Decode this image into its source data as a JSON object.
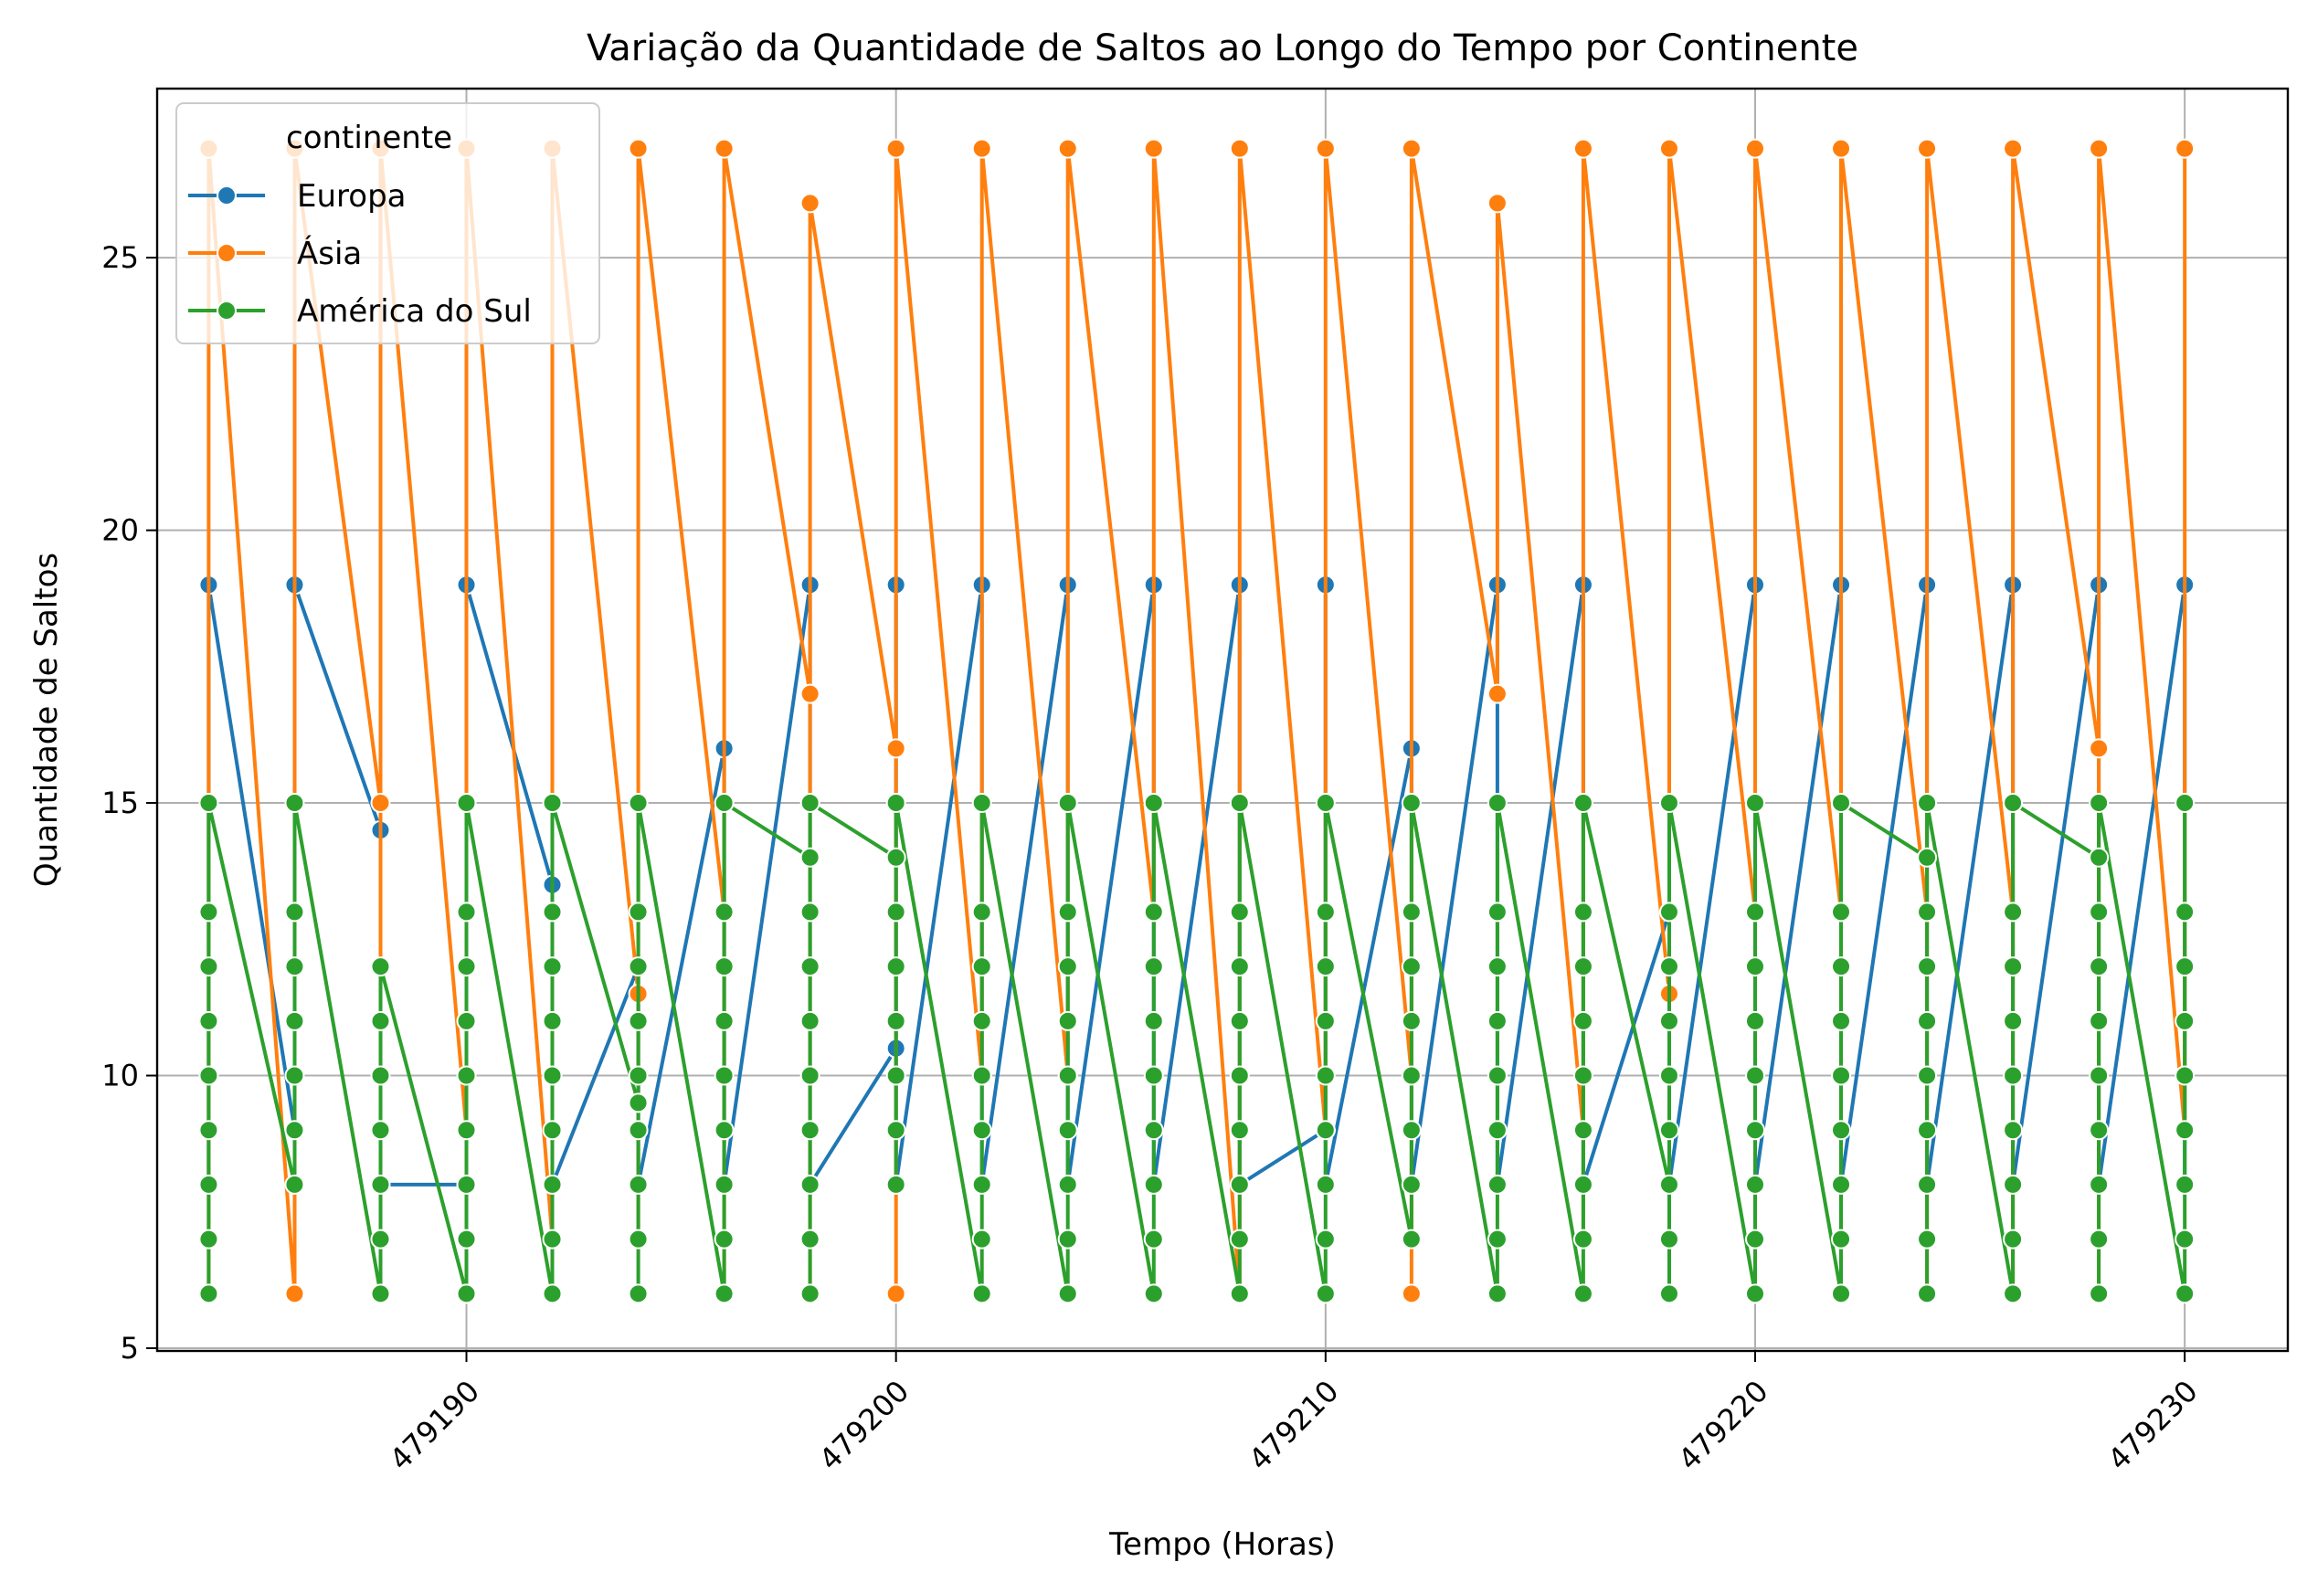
{
  "chart_data": {
    "type": "line",
    "title": "Variação da Quantidade de Saltos ao Longo do Tempo por Continente",
    "xlabel": "Tempo (Horas)",
    "ylabel": "Quantidade de Saltos",
    "xlim": [
      479182.8,
      479232.4
    ],
    "ylim": [
      4.95,
      28.1
    ],
    "x_ticks": [
      479190,
      479200,
      479210,
      479220,
      479230
    ],
    "y_ticks": [
      5,
      10,
      15,
      20,
      25
    ],
    "grid": true,
    "legend": {
      "title": "continente",
      "placement": "top-left"
    },
    "x": [
      479184,
      479186,
      479188,
      479190,
      479192,
      479194,
      479196,
      479198,
      479200,
      479202,
      479204,
      479206,
      479208,
      479210,
      479212,
      479214,
      479216,
      479218,
      479220,
      479222,
      479224,
      479226,
      479228,
      479230
    ],
    "series": [
      {
        "name": "Europa",
        "color": "#1f77b4",
        "points_per_x": [
          [
            8,
            19
          ],
          [
            9,
            19
          ],
          [
            14.5,
            8
          ],
          [
            8,
            19
          ],
          [
            13.5,
            8
          ],
          [
            12,
            8
          ],
          [
            16,
            8
          ],
          [
            19,
            8
          ],
          [
            10.5,
            19,
            11,
            8
          ],
          [
            19,
            8
          ],
          [
            19,
            8
          ],
          [
            19,
            8
          ],
          [
            19,
            8
          ],
          [
            9,
            19,
            11,
            8
          ],
          [
            16,
            8
          ],
          [
            19,
            8
          ],
          [
            19,
            8
          ],
          [
            13,
            8
          ],
          [
            19,
            8
          ],
          [
            19,
            8
          ],
          [
            19,
            8
          ],
          [
            19,
            8
          ],
          [
            19,
            8
          ],
          [
            19,
            8
          ]
        ]
      },
      {
        "name": "Ásia",
        "color": "#ff7f0e",
        "points_per_x": [
          [
            6,
            27
          ],
          [
            6,
            27
          ],
          [
            15,
            6,
            27
          ],
          [
            9,
            6,
            27
          ],
          [
            7,
            27
          ],
          [
            11.5,
            7,
            27
          ],
          [
            13,
            6,
            27
          ],
          [
            17,
            6,
            26
          ],
          [
            16,
            6,
            27
          ],
          [
            10,
            27
          ],
          [
            10,
            27
          ],
          [
            13,
            27
          ],
          [
            6,
            27
          ],
          [
            9,
            27
          ],
          [
            10,
            6,
            27
          ],
          [
            17,
            26
          ],
          [
            9,
            7,
            27
          ],
          [
            11.5,
            6,
            27
          ],
          [
            13,
            6,
            27
          ],
          [
            13,
            6,
            27
          ],
          [
            13,
            6,
            27
          ],
          [
            13,
            6,
            27
          ],
          [
            16,
            6,
            27
          ],
          [
            9,
            27
          ]
        ]
      },
      {
        "name": "América do Sul",
        "color": "#2ca02c",
        "points_per_x": [
          [
            6,
            15
          ],
          [
            8,
            15
          ],
          [
            6,
            12
          ],
          [
            6,
            15
          ],
          [
            6,
            15
          ],
          [
            9.5,
            6,
            15
          ],
          [
            6,
            15
          ],
          [
            14,
            6,
            15
          ],
          [
            14,
            8,
            15
          ],
          [
            6,
            15
          ],
          [
            6,
            15
          ],
          [
            6,
            15
          ],
          [
            6,
            15
          ],
          [
            6,
            15
          ],
          [
            7,
            15
          ],
          [
            6,
            15
          ],
          [
            6,
            15
          ],
          [
            8,
            6,
            15
          ],
          [
            6,
            15
          ],
          [
            6,
            15
          ],
          [
            14,
            6,
            15
          ],
          [
            6,
            15
          ],
          [
            14,
            6,
            15
          ],
          [
            6,
            15
          ]
        ],
        "marker_values": [
          6,
          7,
          8,
          9,
          10,
          11,
          12,
          13,
          15
        ]
      }
    ]
  }
}
